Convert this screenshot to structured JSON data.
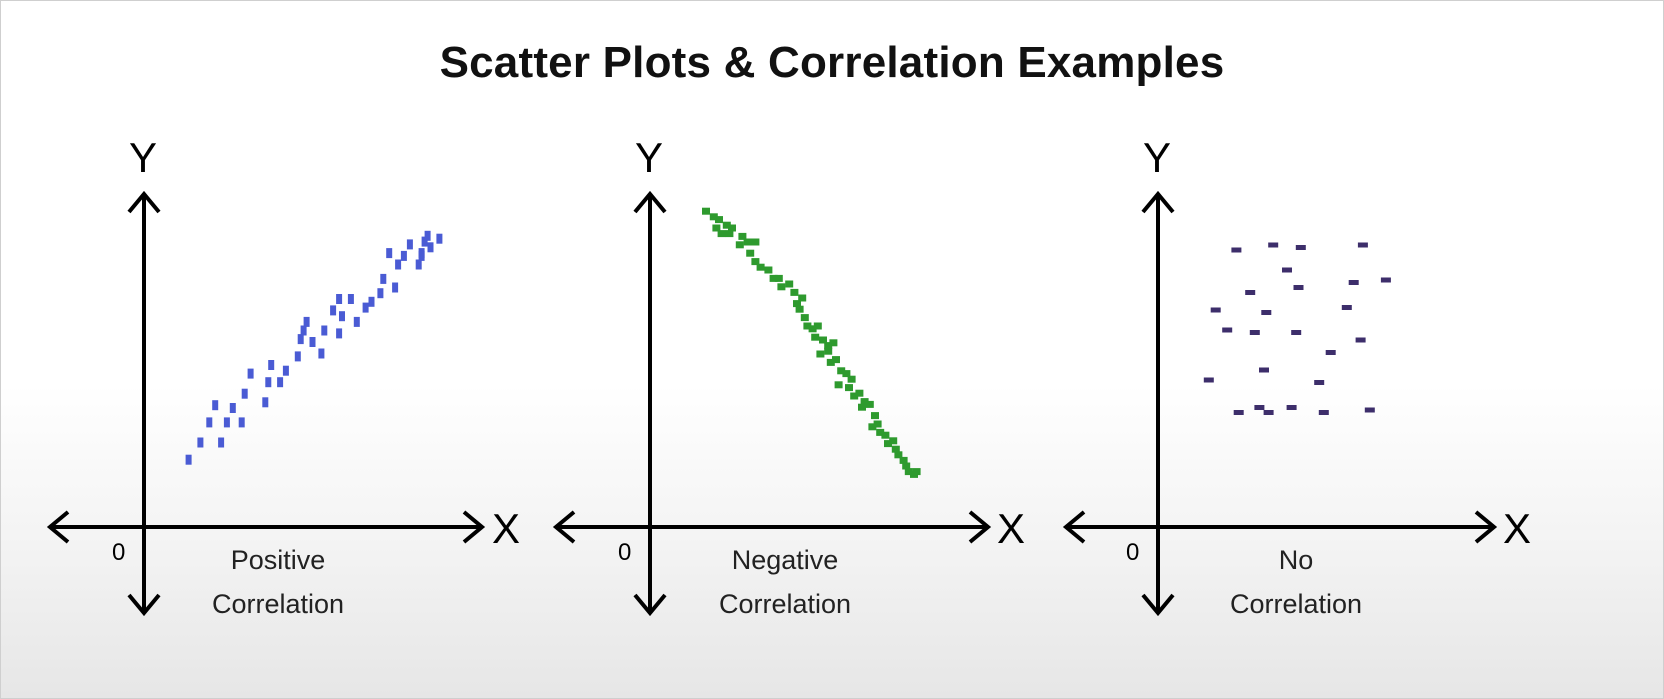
{
  "title": "Scatter Plots & Correlation Examples",
  "chart_data": [
    {
      "type": "scatter",
      "label_lines": [
        "Positive",
        "Correlation"
      ],
      "color": "#4a5bd4",
      "x_axis_label": "X",
      "y_axis_label": "Y",
      "origin_label": "0",
      "xlim": [
        0,
        10
      ],
      "ylim": [
        0,
        10
      ],
      "points": [
        [
          0.8,
          1.3
        ],
        [
          1.2,
          1.9
        ],
        [
          1.5,
          2.6
        ],
        [
          1.7,
          3.2
        ],
        [
          1.9,
          1.9
        ],
        [
          2.1,
          2.6
        ],
        [
          2.3,
          3.1
        ],
        [
          2.6,
          2.6
        ],
        [
          2.7,
          3.6
        ],
        [
          2.9,
          4.3
        ],
        [
          3.4,
          3.3
        ],
        [
          3.5,
          4.0
        ],
        [
          3.6,
          4.6
        ],
        [
          3.9,
          4.0
        ],
        [
          4.1,
          4.4
        ],
        [
          4.5,
          4.9
        ],
        [
          4.6,
          5.5
        ],
        [
          4.8,
          6.1
        ],
        [
          4.7,
          5.8
        ],
        [
          5.0,
          5.4
        ],
        [
          5.3,
          5.0
        ],
        [
          5.4,
          5.8
        ],
        [
          5.7,
          6.5
        ],
        [
          5.9,
          6.9
        ],
        [
          5.9,
          5.7
        ],
        [
          6.0,
          6.3
        ],
        [
          6.3,
          6.9
        ],
        [
          6.5,
          6.1
        ],
        [
          6.8,
          6.6
        ],
        [
          7.0,
          6.8
        ],
        [
          7.3,
          7.1
        ],
        [
          7.4,
          7.6
        ],
        [
          7.8,
          7.3
        ],
        [
          7.9,
          8.1
        ],
        [
          8.1,
          8.4
        ],
        [
          7.6,
          8.5
        ],
        [
          8.3,
          8.8
        ],
        [
          8.6,
          8.1
        ],
        [
          8.7,
          8.5
        ],
        [
          8.8,
          8.9
        ],
        [
          9.0,
          8.7
        ],
        [
          8.9,
          9.1
        ],
        [
          9.3,
          9.0
        ],
        [
          8.7,
          8.4
        ]
      ]
    },
    {
      "type": "scatter",
      "label_lines": [
        "Negative",
        "Correlation"
      ],
      "color": "#2e9a2e",
      "x_axis_label": "X",
      "y_axis_label": "Y",
      "origin_label": "0",
      "xlim": [
        0,
        10
      ],
      "ylim": [
        0,
        10
      ],
      "points": [
        [
          1.0,
          9.6
        ],
        [
          1.3,
          9.4
        ],
        [
          1.5,
          9.3
        ],
        [
          1.4,
          9.0
        ],
        [
          1.8,
          9.1
        ],
        [
          1.9,
          8.8
        ],
        [
          1.6,
          8.8
        ],
        [
          2.0,
          9.0
        ],
        [
          2.4,
          8.7
        ],
        [
          2.6,
          8.5
        ],
        [
          2.3,
          8.4
        ],
        [
          2.9,
          8.5
        ],
        [
          2.7,
          8.1
        ],
        [
          2.9,
          7.8
        ],
        [
          3.1,
          7.6
        ],
        [
          3.4,
          7.5
        ],
        [
          3.6,
          7.2
        ],
        [
          3.8,
          7.2
        ],
        [
          3.9,
          6.9
        ],
        [
          4.2,
          7.0
        ],
        [
          4.4,
          6.7
        ],
        [
          4.5,
          6.3
        ],
        [
          4.7,
          6.5
        ],
        [
          4.6,
          6.1
        ],
        [
          4.8,
          5.8
        ],
        [
          4.9,
          5.5
        ],
        [
          5.1,
          5.4
        ],
        [
          5.3,
          5.5
        ],
        [
          5.2,
          5.1
        ],
        [
          5.5,
          5.0
        ],
        [
          5.7,
          4.8
        ],
        [
          5.9,
          4.9
        ],
        [
          5.7,
          4.6
        ],
        [
          5.8,
          4.2
        ],
        [
          6.0,
          4.3
        ],
        [
          6.2,
          3.9
        ],
        [
          6.4,
          3.8
        ],
        [
          6.6,
          3.6
        ],
        [
          6.5,
          3.3
        ],
        [
          6.7,
          3.0
        ],
        [
          6.9,
          3.1
        ],
        [
          7.1,
          2.8
        ],
        [
          7.0,
          2.6
        ],
        [
          7.3,
          2.7
        ],
        [
          7.5,
          2.3
        ],
        [
          7.4,
          1.9
        ],
        [
          7.7,
          1.7
        ],
        [
          7.9,
          1.6
        ],
        [
          8.0,
          1.3
        ],
        [
          8.2,
          1.4
        ],
        [
          8.3,
          1.1
        ],
        [
          8.4,
          0.9
        ],
        [
          8.6,
          0.7
        ],
        [
          8.7,
          0.5
        ],
        [
          8.8,
          0.3
        ],
        [
          9.0,
          0.2
        ],
        [
          9.1,
          0.3
        ],
        [
          6.1,
          3.4
        ],
        [
          7.6,
          2.0
        ],
        [
          5.4,
          4.5
        ]
      ]
    },
    {
      "type": "scatter",
      "label_lines": [
        "No",
        "Correlation"
      ],
      "color": "#3d2e6b",
      "x_axis_label": "X",
      "y_axis_label": "Y",
      "origin_label": "0",
      "xlim": [
        0,
        10
      ],
      "ylim": [
        0,
        10
      ],
      "points": [
        [
          1.8,
          8.6
        ],
        [
          3.4,
          8.8
        ],
        [
          4.6,
          8.7
        ],
        [
          7.3,
          8.8
        ],
        [
          4.0,
          7.8
        ],
        [
          6.9,
          7.3
        ],
        [
          8.3,
          7.4
        ],
        [
          4.5,
          7.1
        ],
        [
          2.4,
          6.9
        ],
        [
          0.9,
          6.2
        ],
        [
          3.1,
          6.1
        ],
        [
          6.6,
          6.3
        ],
        [
          1.4,
          5.4
        ],
        [
          2.6,
          5.3
        ],
        [
          4.4,
          5.3
        ],
        [
          7.2,
          5.0
        ],
        [
          5.9,
          4.5
        ],
        [
          5.4,
          3.3
        ],
        [
          3.0,
          3.8
        ],
        [
          0.6,
          3.4
        ],
        [
          1.9,
          2.1
        ],
        [
          2.8,
          2.3
        ],
        [
          3.2,
          2.1
        ],
        [
          4.2,
          2.3
        ],
        [
          5.6,
          2.1
        ],
        [
          7.6,
          2.2
        ]
      ]
    }
  ]
}
